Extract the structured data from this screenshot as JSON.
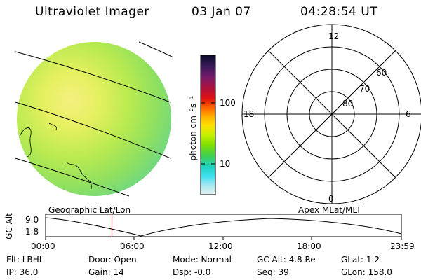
{
  "header": {
    "instrument": "Ultraviolet Imager",
    "date": "03 Jan 07",
    "time": "04:28:54 UT"
  },
  "colorbar": {
    "unit_label": "photon cm⁻²s⁻¹",
    "ticks": [
      "100",
      "10"
    ],
    "colors_top_to_bottom": [
      "#0a0a2a",
      "#3a1a5a",
      "#7a1a6a",
      "#b0103a",
      "#e01010",
      "#ff6a00",
      "#ffb000",
      "#ffe000",
      "#c8f000",
      "#80e000",
      "#40d050",
      "#20d0c0",
      "#40e0f0",
      "#a0e8f0",
      "#e0f0f0"
    ]
  },
  "polar_plot": {
    "hour_labels": {
      "top": "12",
      "left": "18",
      "right": "6",
      "bottom": "0"
    },
    "lat_labels": [
      "60",
      "70",
      "80"
    ]
  },
  "orbit_panel": {
    "left_title": "Geographic Lat/Lon",
    "right_title": "Apex  MLat/MLT",
    "y_label": "GC Alt",
    "y_ticks": [
      "9.0",
      "1.8"
    ],
    "x_ticks": [
      "00:00",
      "06:00",
      "12:00",
      "18:00",
      "23:59"
    ],
    "current_time_marker_hours": 4.48,
    "marker_color": "#e03030"
  },
  "info": {
    "filter": "Flt: LBHL",
    "ip": "IP: 36.0",
    "door": "Door: Open",
    "gain": "Gain: 14",
    "mode": "Mode: Normal",
    "dsp": "Dsp:   -0.0",
    "gc_alt": "GC Alt: 4.8 Re",
    "seq": "Seq: 39",
    "glat": "GLat:   1.2",
    "glon": "GLon: 158.0"
  }
}
